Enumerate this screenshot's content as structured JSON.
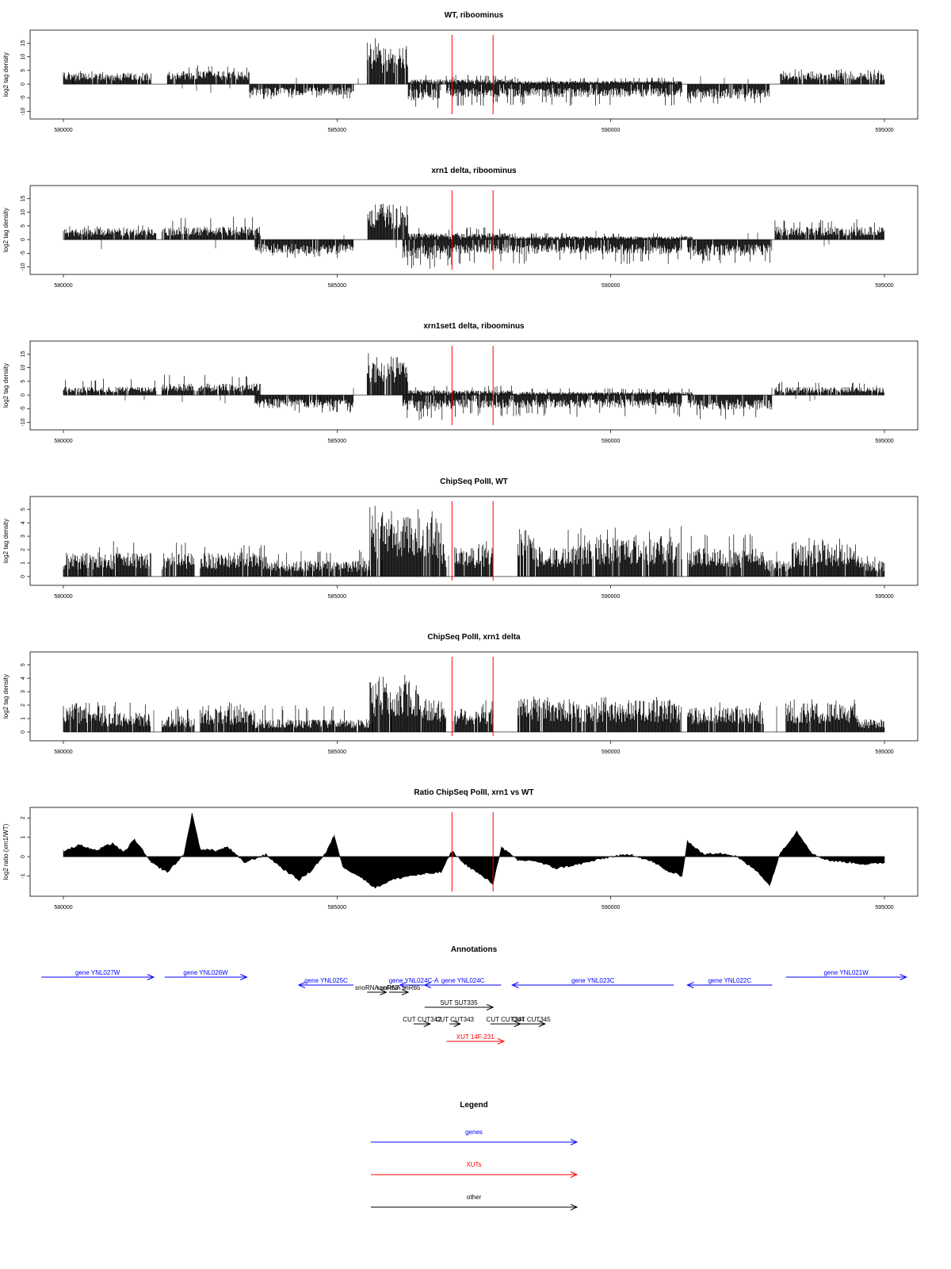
{
  "chart_data": [
    {
      "type": "bar",
      "title": "WT, riboominus",
      "ylabel": "log2 tag density",
      "xlim": [
        580000,
        595000
      ],
      "ylim": [
        -11,
        18
      ],
      "x_ticks": [
        "580000",
        "585000",
        "590000",
        "595000"
      ],
      "y_ticks": [
        "15",
        "10",
        "5",
        "0",
        "-5",
        "-10"
      ],
      "baseline": 0,
      "red_markers": [
        587100,
        587850
      ],
      "segments": [
        {
          "start": 580000,
          "end": 581600,
          "side": "up",
          "level": 3.5,
          "max": 4.8
        },
        {
          "start": 581900,
          "end": 583400,
          "side": "up",
          "level": 4,
          "max": 7
        },
        {
          "start": 583400,
          "end": 585300,
          "side": "down",
          "level": -3.5,
          "max": -5.5
        },
        {
          "start": 585550,
          "end": 586300,
          "side": "up",
          "level": 11,
          "max": 17
        },
        {
          "start": 586300,
          "end": 586900,
          "side": "down",
          "level": -5,
          "max": -10
        },
        {
          "start": 586300,
          "end": 588200,
          "side": "up",
          "level": 1.5,
          "max": 3.5
        },
        {
          "start": 587000,
          "end": 591300,
          "side": "down",
          "level": -4,
          "max": -8
        },
        {
          "start": 588200,
          "end": 591300,
          "side": "up",
          "level": 1,
          "max": 2.5
        },
        {
          "start": 591400,
          "end": 592900,
          "side": "down",
          "level": -4.5,
          "max": -7.5
        },
        {
          "start": 593100,
          "end": 595000,
          "side": "up",
          "level": 3.5,
          "max": 5.5
        }
      ]
    },
    {
      "type": "bar",
      "title": "xrn1 delta, riboominus",
      "ylabel": "log2 tag density",
      "xlim": [
        580000,
        595000
      ],
      "ylim": [
        -11,
        18
      ],
      "x_ticks": [
        "580000",
        "585000",
        "590000",
        "595000"
      ],
      "y_ticks": [
        "15",
        "10",
        "5",
        "0",
        "-5",
        "-10"
      ],
      "baseline": 0,
      "red_markers": [
        587100,
        587850
      ],
      "segments": [
        {
          "start": 580000,
          "end": 581700,
          "side": "up",
          "level": 3.5,
          "max": 5.5
        },
        {
          "start": 581800,
          "end": 583600,
          "side": "up",
          "level": 4,
          "max": 8.5
        },
        {
          "start": 583500,
          "end": 585300,
          "side": "down",
          "level": -4.5,
          "max": -7
        },
        {
          "start": 585550,
          "end": 586300,
          "side": "up",
          "level": 11,
          "max": 17.5
        },
        {
          "start": 586200,
          "end": 587100,
          "side": "down",
          "level": -6,
          "max": -11
        },
        {
          "start": 586300,
          "end": 588200,
          "side": "up",
          "level": 2,
          "max": 4.5
        },
        {
          "start": 587100,
          "end": 591300,
          "side": "down",
          "level": -4.5,
          "max": -9
        },
        {
          "start": 588200,
          "end": 591500,
          "side": "up",
          "level": 1,
          "max": 2.5
        },
        {
          "start": 591400,
          "end": 592950,
          "side": "down",
          "level": -5,
          "max": -9
        },
        {
          "start": 593000,
          "end": 595000,
          "side": "up",
          "level": 4,
          "max": 7.5
        }
      ]
    },
    {
      "type": "bar",
      "title": "xrn1set1 delta, riboominus",
      "ylabel": "log2 tag density",
      "xlim": [
        580000,
        595000
      ],
      "ylim": [
        -11,
        18
      ],
      "x_ticks": [
        "580000",
        "585000",
        "590000",
        "595000"
      ],
      "y_ticks": [
        "15",
        "10",
        "5",
        "0",
        "-5",
        "-10"
      ],
      "baseline": 0,
      "red_markers": [
        587100,
        587850
      ],
      "segments": [
        {
          "start": 580000,
          "end": 581700,
          "side": "up",
          "level": 2.5,
          "max": 6
        },
        {
          "start": 581800,
          "end": 583600,
          "side": "up",
          "level": 3.5,
          "max": 8
        },
        {
          "start": 583500,
          "end": 585300,
          "side": "down",
          "level": -4,
          "max": -6.5
        },
        {
          "start": 585550,
          "end": 586300,
          "side": "up",
          "level": 10,
          "max": 16
        },
        {
          "start": 586200,
          "end": 587100,
          "side": "down",
          "level": -5,
          "max": -9.5
        },
        {
          "start": 586300,
          "end": 588200,
          "side": "up",
          "level": 1.5,
          "max": 3.5
        },
        {
          "start": 587100,
          "end": 591300,
          "side": "down",
          "level": -4,
          "max": -8
        },
        {
          "start": 588200,
          "end": 591500,
          "side": "up",
          "level": 1,
          "max": 2.5
        },
        {
          "start": 591400,
          "end": 592950,
          "side": "down",
          "level": -4.5,
          "max": -9
        },
        {
          "start": 593000,
          "end": 595000,
          "side": "up",
          "level": 2.5,
          "max": 5
        }
      ]
    },
    {
      "type": "bar",
      "title": "ChipSeq PolII, WT",
      "ylabel": "log2 tag density",
      "xlim": [
        580000,
        595000
      ],
      "ylim": [
        -0.3,
        5.6
      ],
      "x_ticks": [
        "580000",
        "585000",
        "590000",
        "595000"
      ],
      "y_ticks": [
        "5",
        "4",
        "3",
        "2",
        "1",
        "0"
      ],
      "baseline": 0,
      "red_markers": [
        587100,
        587850
      ],
      "segments": [
        {
          "start": 580000,
          "end": 581600,
          "side": "up",
          "level": 1.5,
          "max": 2.7
        },
        {
          "start": 581800,
          "end": 582400,
          "side": "up",
          "level": 1.5,
          "max": 2.6
        },
        {
          "start": 582500,
          "end": 583800,
          "side": "up",
          "level": 1.5,
          "max": 2.4
        },
        {
          "start": 583800,
          "end": 585600,
          "side": "up",
          "level": 1.0,
          "max": 2.0
        },
        {
          "start": 585600,
          "end": 586900,
          "side": "up",
          "level": 3.8,
          "max": 5.4
        },
        {
          "start": 586900,
          "end": 587000,
          "side": "up",
          "level": 1.5,
          "max": 2.5
        },
        {
          "start": 587150,
          "end": 587850,
          "side": "up",
          "level": 1.8,
          "max": 2.7
        },
        {
          "start": 588300,
          "end": 588600,
          "side": "up",
          "level": 3.0,
          "max": 3.3
        },
        {
          "start": 588600,
          "end": 589200,
          "side": "up",
          "level": 1.8,
          "max": 2.6
        },
        {
          "start": 589200,
          "end": 591300,
          "side": "up",
          "level": 2.5,
          "max": 3.8
        },
        {
          "start": 591400,
          "end": 592800,
          "side": "up",
          "level": 1.8,
          "max": 3.5
        },
        {
          "start": 592800,
          "end": 593300,
          "side": "up",
          "level": 1.0,
          "max": 1.5
        },
        {
          "start": 593300,
          "end": 594500,
          "side": "up",
          "level": 2.0,
          "max": 2.9
        },
        {
          "start": 594500,
          "end": 595000,
          "side": "up",
          "level": 1.0,
          "max": 1.6
        }
      ]
    },
    {
      "type": "bar",
      "title": "ChipSeq PolII, xrn1 delta",
      "ylabel": "log2 tag density",
      "xlim": [
        580000,
        595000
      ],
      "ylim": [
        -0.3,
        5.6
      ],
      "x_ticks": [
        "580000",
        "585000",
        "590000",
        "595000"
      ],
      "y_ticks": [
        "5",
        "4",
        "3",
        "2",
        "1",
        "0"
      ],
      "baseline": 0,
      "red_markers": [
        587100,
        587850
      ],
      "segments": [
        {
          "start": 580000,
          "end": 580500,
          "side": "up",
          "level": 1.8,
          "max": 2.7
        },
        {
          "start": 580500,
          "end": 581600,
          "side": "up",
          "level": 1.2,
          "max": 2.3
        },
        {
          "start": 581800,
          "end": 582400,
          "side": "up",
          "level": 1.0,
          "max": 1.8
        },
        {
          "start": 582500,
          "end": 583500,
          "side": "up",
          "level": 1.5,
          "max": 2.3
        },
        {
          "start": 583500,
          "end": 585600,
          "side": "up",
          "level": 0.8,
          "max": 2.0
        },
        {
          "start": 585600,
          "end": 586500,
          "side": "up",
          "level": 3.2,
          "max": 4.5
        },
        {
          "start": 586500,
          "end": 587000,
          "side": "up",
          "level": 2.0,
          "max": 2.6
        },
        {
          "start": 587150,
          "end": 587850,
          "side": "up",
          "level": 1.5,
          "max": 2.4
        },
        {
          "start": 588300,
          "end": 588800,
          "side": "up",
          "level": 2.2,
          "max": 2.8
        },
        {
          "start": 588800,
          "end": 591300,
          "side": "up",
          "level": 2.0,
          "max": 2.6
        },
        {
          "start": 591400,
          "end": 592800,
          "side": "up",
          "level": 1.5,
          "max": 2.3
        },
        {
          "start": 593200,
          "end": 594500,
          "side": "up",
          "level": 1.8,
          "max": 2.5
        },
        {
          "start": 594500,
          "end": 595000,
          "side": "up",
          "level": 0.8,
          "max": 1.3
        }
      ]
    },
    {
      "type": "area",
      "title": "Ratio ChipSeq PolII, xrn1 vs WT",
      "ylabel": "log2 ratio (xrn1/WT)",
      "xlim": [
        580000,
        595000
      ],
      "ylim": [
        -1.8,
        2.3
      ],
      "x_ticks": [
        "580000",
        "585000",
        "590000",
        "595000"
      ],
      "y_ticks": [
        "2",
        "1",
        "0",
        "-1"
      ],
      "baseline": 0,
      "red_markers": [
        587100,
        587850
      ],
      "x": [
        580000,
        580300,
        580600,
        580900,
        581100,
        581300,
        581600,
        581900,
        582200,
        582350,
        582500,
        582800,
        583000,
        583300,
        583700,
        584000,
        584300,
        584500,
        584800,
        584950,
        585100,
        585400,
        585700,
        586000,
        586300,
        586600,
        586900,
        587100,
        587300,
        587600,
        587850,
        588000,
        588300,
        588600,
        589000,
        589400,
        589700,
        590000,
        590400,
        590800,
        591000,
        591300,
        591400,
        591700,
        592000,
        592300,
        592700,
        592900,
        593100,
        593400,
        593700,
        594000,
        594400,
        594700,
        595000
      ],
      "y": [
        0.3,
        0.6,
        0.3,
        0.7,
        0.2,
        0.9,
        -0.3,
        -0.8,
        0.1,
        2.2,
        0.4,
        0.3,
        0.5,
        -0.3,
        0.1,
        -0.6,
        -1.2,
        -0.8,
        0.2,
        1.1,
        -0.5,
        -1.0,
        -1.6,
        -1.2,
        -1.0,
        -0.9,
        -0.8,
        0.3,
        -0.3,
        -0.9,
        -1.4,
        0.5,
        -0.2,
        -0.2,
        -0.6,
        -0.4,
        -0.2,
        0.0,
        0.1,
        -0.3,
        -0.7,
        -1.0,
        0.8,
        0.1,
        0.2,
        0.0,
        -0.8,
        -1.5,
        0.2,
        1.3,
        0.1,
        -0.2,
        -0.3,
        -0.4,
        -0.3
      ]
    },
    {
      "type": "table",
      "title": "Annotations",
      "xlim": [
        580000,
        595000
      ],
      "features": [
        {
          "label": "gene YNL027W",
          "start": 579600,
          "end": 581650,
          "color": "#0000ff",
          "dir": "right",
          "row": 0
        },
        {
          "label": "gene YNL026W",
          "start": 581850,
          "end": 583350,
          "color": "#0000ff",
          "dir": "right",
          "row": 0
        },
        {
          "label": "gene YNL025C",
          "start": 584300,
          "end": 585300,
          "color": "#0000ff",
          "dir": "left",
          "row": 1
        },
        {
          "label": "gene YNL024C-A",
          "start": 586150,
          "end": 586650,
          "color": "#0000ff",
          "dir": "left",
          "row": 1
        },
        {
          "label": "gene YNL024C",
          "start": 586600,
          "end": 588000,
          "color": "#0000ff",
          "dir": "left",
          "row": 1
        },
        {
          "label": "gene YNL023C",
          "start": 588200,
          "end": 591150,
          "color": "#0000ff",
          "dir": "left",
          "row": 1
        },
        {
          "label": "gene YNL022C",
          "start": 591400,
          "end": 592950,
          "color": "#0000ff",
          "dir": "left",
          "row": 1
        },
        {
          "label": "gene YNL021W",
          "start": 593200,
          "end": 595400,
          "color": "#0000ff",
          "dir": "right",
          "row": 0
        },
        {
          "label": "snoRNA snR63",
          "start": 585550,
          "end": 585900,
          "color": "#000000",
          "dir": "right",
          "row": 2
        },
        {
          "label": "snoRNA snR65",
          "start": 585950,
          "end": 586300,
          "color": "#000000",
          "dir": "right",
          "row": 2
        },
        {
          "label": "SUT SUT335",
          "start": 586600,
          "end": 587850,
          "color": "#000000",
          "dir": "right",
          "row": 3
        },
        {
          "label": "CUT CUT342",
          "start": 586400,
          "end": 586700,
          "color": "#000000",
          "dir": "right",
          "row": 4
        },
        {
          "label": "CUT CUT343",
          "start": 587050,
          "end": 587250,
          "color": "#000000",
          "dir": "right",
          "row": 4
        },
        {
          "label": "CUT CUT344",
          "start": 587800,
          "end": 588350,
          "color": "#000000",
          "dir": "right",
          "row": 4
        },
        {
          "label": "CUT CUT345",
          "start": 588300,
          "end": 588800,
          "color": "#000000",
          "dir": "right",
          "row": 4
        },
        {
          "label": "XUT 14F-231",
          "start": 587000,
          "end": 588050,
          "color": "#ff0000",
          "dir": "right",
          "row": 5
        }
      ]
    },
    {
      "type": "table",
      "title": "Legend",
      "entries": [
        {
          "label": "genes",
          "color": "#0000ff"
        },
        {
          "label": "XUTs",
          "color": "#ff0000"
        },
        {
          "label": "other",
          "color": "#000000"
        }
      ]
    }
  ]
}
